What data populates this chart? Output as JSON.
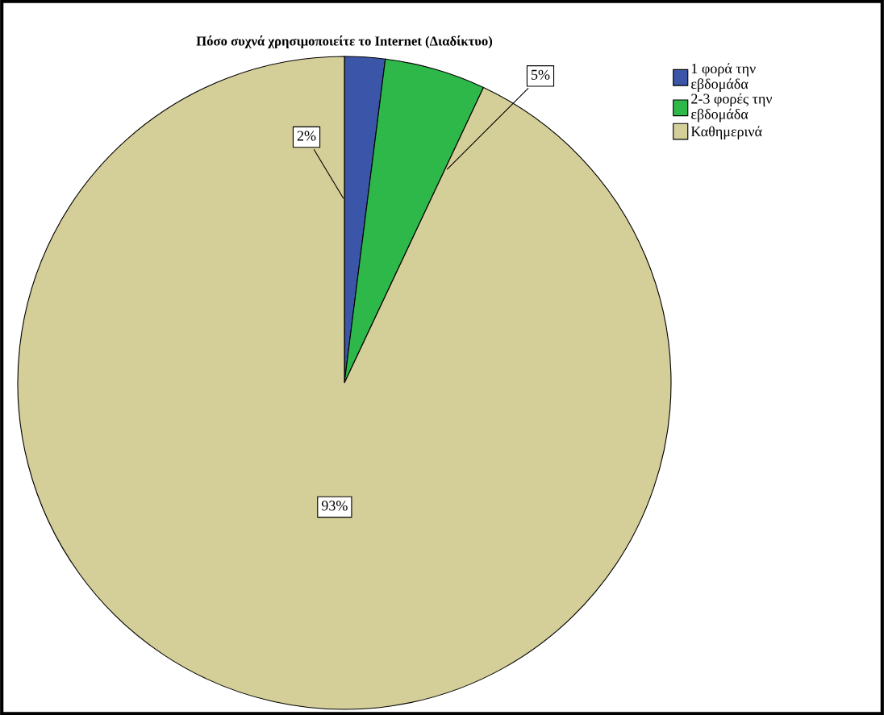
{
  "chart_data": {
    "type": "pie",
    "title": "Πόσο συχνά χρησιμοποιείτε το Internet (Διαδίκτυο)",
    "categories": [
      "1 φορά την\nεβδομάδα",
      "2-3 φορές την\nεβδομάδα",
      "Καθημερινά"
    ],
    "values": [
      2,
      5,
      93
    ],
    "value_labels": [
      "2%",
      "5%",
      "93%"
    ],
    "colors": [
      "#3b55a8",
      "#2fb84a",
      "#d4ce98"
    ],
    "legend": "top right"
  }
}
